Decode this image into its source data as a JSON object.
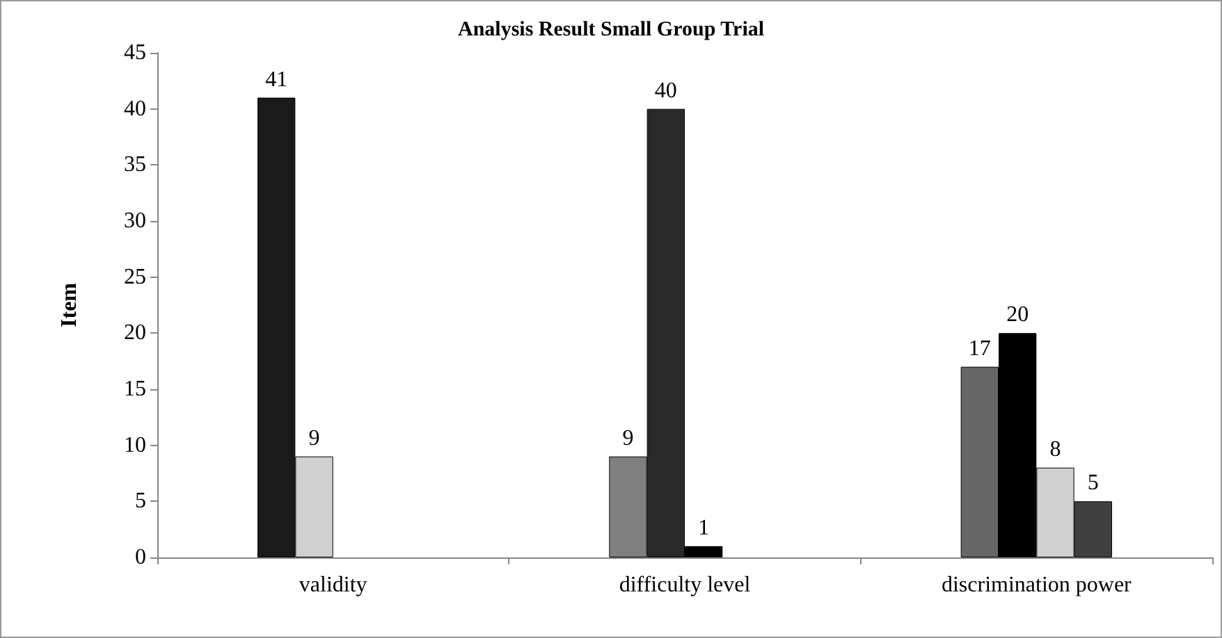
{
  "chart_data": {
    "type": "bar",
    "title": "Analysis Result Small Group Trial",
    "ylabel": "Item",
    "categories": [
      "validity",
      "difficulty level",
      "discrimination power"
    ],
    "series": [
      {
        "colors": [
          "#1a1a1a",
          "#808080",
          "#666666"
        ],
        "values": [
          41,
          9,
          17
        ]
      },
      {
        "colors": [
          "#d0d0d0",
          "#2a2a2a",
          "#000000"
        ],
        "values": [
          9,
          40,
          20
        ]
      },
      {
        "colors": [
          null,
          "#000000",
          "#d0d0d0"
        ],
        "values": [
          null,
          1,
          8
        ]
      },
      {
        "colors": [
          null,
          null,
          "#404040"
        ],
        "values": [
          null,
          null,
          5
        ]
      }
    ],
    "ylim": [
      0,
      45
    ],
    "yticks": [
      0,
      5,
      10,
      15,
      20,
      25,
      30,
      35,
      40,
      45
    ],
    "grid": false,
    "data_labels": true
  }
}
